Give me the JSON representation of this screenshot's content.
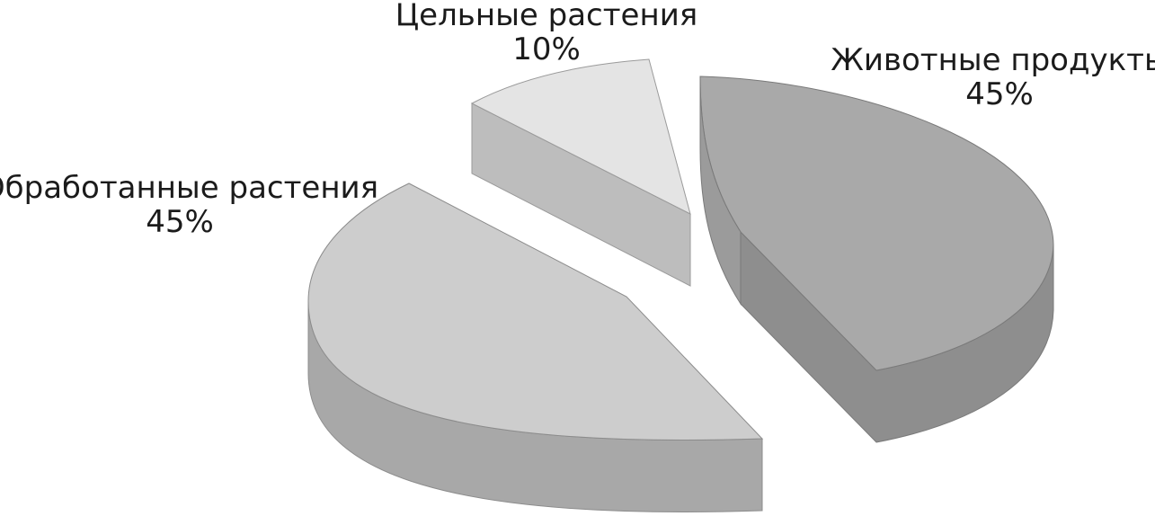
{
  "chart_data": {
    "type": "pie",
    "style": "3d-exploded",
    "slices": [
      {
        "label": "Цельные растения",
        "value": 10,
        "value_label": "10%",
        "color": "#e4e4e4",
        "side_color": "#bdbdbd"
      },
      {
        "label": "Животные продукты",
        "value": 45,
        "value_label": "45%",
        "color": "#a9a9a9",
        "side_color": "#8c8c8c"
      },
      {
        "label": "Обработанные растения",
        "value": 45,
        "value_label": "45%",
        "color": "#cdcdcd",
        "side_color": "#a6a6a6"
      }
    ]
  }
}
